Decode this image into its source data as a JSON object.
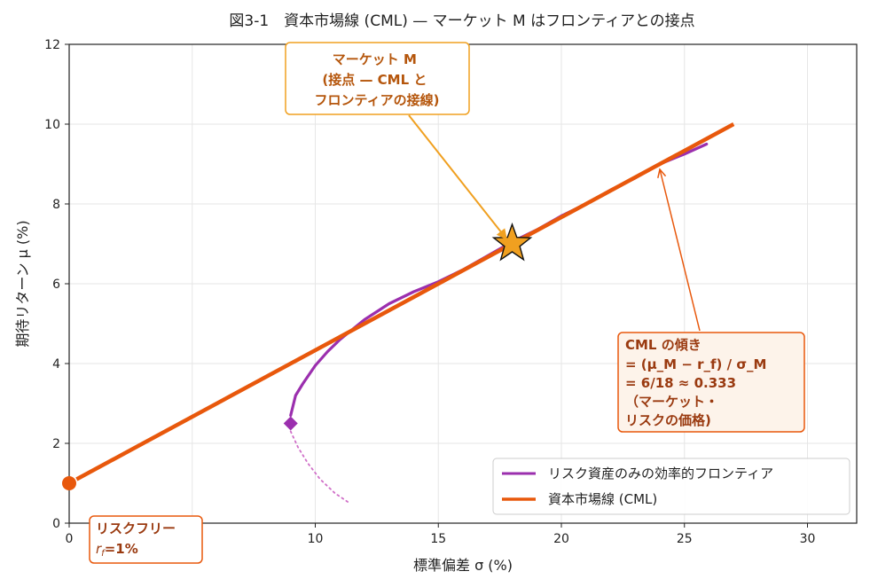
{
  "chart_data": {
    "type": "line",
    "title": "図3-1　資本市場線 (CML) — マーケット M はフロンティアとの接点",
    "xlabel": "標準偏差 σ (%)",
    "ylabel": "期待リターン μ (%)",
    "xlim": [
      0,
      32
    ],
    "ylim": [
      0,
      12
    ],
    "xticks": [
      "0",
      "5",
      "10",
      "15",
      "20",
      "25",
      "30"
    ],
    "yticks": [
      "0",
      "2",
      "4",
      "6",
      "8",
      "10",
      "12"
    ],
    "grid": true,
    "legend_position": "bottom-right",
    "series": [
      {
        "name": "リスク資産のみの効率的フロンティア",
        "color": "#9b2fae",
        "x": [
          9.0,
          9.2,
          9.5,
          10.0,
          10.5,
          11.0,
          11.5,
          12.0,
          13.0,
          14.0,
          15.0,
          16.0,
          17.0,
          18.0,
          19.0,
          20.0,
          21.0,
          22.0,
          23.0,
          24.0,
          25.0,
          25.9
        ],
        "y": [
          2.7,
          3.2,
          3.5,
          3.95,
          4.3,
          4.6,
          4.85,
          5.1,
          5.5,
          5.8,
          6.05,
          6.35,
          6.7,
          7.05,
          7.35,
          7.7,
          8.0,
          8.35,
          8.65,
          9.0,
          9.25,
          9.5
        ]
      },
      {
        "name": "資本市場線 (CML)",
        "color": "#e8580c",
        "x": [
          0.3,
          27.0
        ],
        "y": [
          1.1,
          10.0
        ]
      }
    ],
    "frontier_lower_dotted": {
      "color": "#d070c8",
      "x": [
        9.0,
        9.3,
        9.7,
        10.2,
        10.8,
        11.4
      ],
      "y": [
        2.3,
        1.9,
        1.5,
        1.1,
        0.75,
        0.5
      ]
    },
    "min_variance_point": {
      "x": 9.0,
      "y": 2.5,
      "color": "#9b2fae"
    },
    "risk_free_point": {
      "x": 0,
      "y": 1.0,
      "color": "#e8580c"
    },
    "market_point": {
      "x": 18.0,
      "y": 7.0,
      "color": "#f0a020"
    },
    "annotations": {
      "market": {
        "lines": [
          "マーケット M",
          "(接点 — CML と",
          "フロンティアの接線)"
        ],
        "text_color": "#b5560c",
        "border_color": "#f0a020",
        "target": {
          "x": 17.8,
          "y": 7.1
        }
      },
      "slope": {
        "lines": [
          "CML の傾き",
          "= (μ_M − r_f) / σ_M",
          "= 6/18 ≈ 0.333",
          "（マーケット・",
          "リスクの価格)"
        ],
        "text_color": "#9a3a10",
        "border_color": "#e8580c",
        "target": {
          "x": 24.0,
          "y": 9.0
        }
      },
      "riskfree": {
        "title": "リスクフリー",
        "formula": "r_f=1%",
        "formula_base": "r",
        "formula_sub": "f",
        "formula_rest": "=1%",
        "text_color": "#9a3a10",
        "border_color": "#e8580c"
      }
    }
  }
}
